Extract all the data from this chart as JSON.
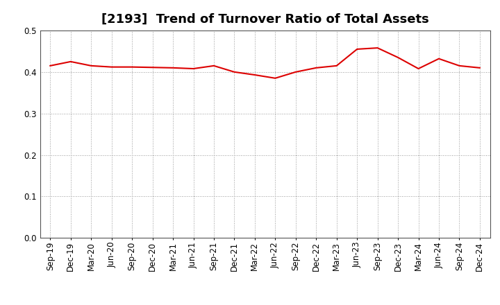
{
  "title": "[2193]  Trend of Turnover Ratio of Total Assets",
  "x_labels": [
    "Sep-19",
    "Dec-19",
    "Mar-20",
    "Jun-20",
    "Sep-20",
    "Dec-20",
    "Mar-21",
    "Jun-21",
    "Sep-21",
    "Dec-21",
    "Mar-22",
    "Jun-22",
    "Sep-22",
    "Dec-22",
    "Mar-23",
    "Jun-23",
    "Sep-23",
    "Dec-23",
    "Mar-24",
    "Jun-24",
    "Sep-24",
    "Dec-24"
  ],
  "y_values": [
    0.415,
    0.425,
    0.415,
    0.412,
    0.412,
    0.411,
    0.41,
    0.408,
    0.415,
    0.4,
    0.393,
    0.385,
    0.4,
    0.41,
    0.415,
    0.455,
    0.458,
    0.435,
    0.408,
    0.432,
    0.415,
    0.41
  ],
  "line_color": "#dd0000",
  "line_width": 1.5,
  "ylim": [
    0.0,
    0.5
  ],
  "yticks": [
    0.0,
    0.1,
    0.2,
    0.3,
    0.4,
    0.5
  ],
  "grid_color": "#999999",
  "background_color": "#ffffff",
  "title_fontsize": 13,
  "tick_fontsize": 8.5
}
